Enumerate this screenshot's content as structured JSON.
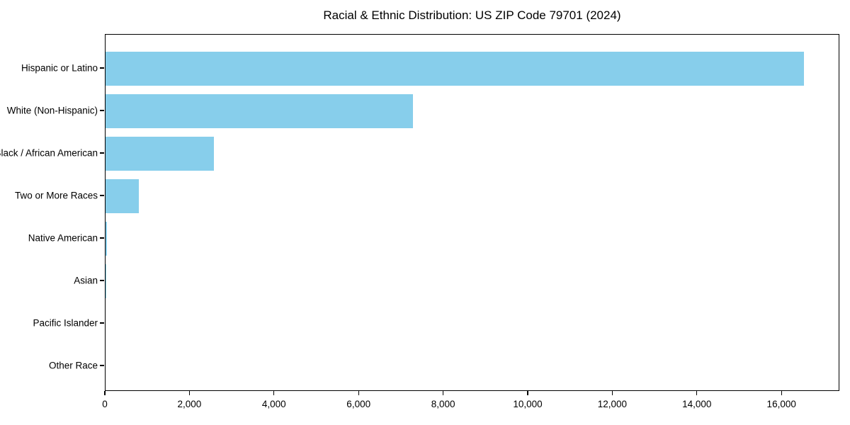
{
  "chart_data": {
    "type": "bar",
    "orientation": "horizontal",
    "title": "Racial & Ethnic Distribution: US ZIP Code 79701 (2024)",
    "categories": [
      "Hispanic or Latino",
      "White (Non-Hispanic)",
      "Black / African American",
      "Two or More Races",
      "Native American",
      "Asian",
      "Pacific Islander",
      "Other Race"
    ],
    "values": [
      16550,
      7280,
      2560,
      790,
      30,
      10,
      0,
      0
    ],
    "xlabel": "",
    "ylabel": "",
    "xlim": [
      0,
      17370
    ],
    "xticks": [
      0,
      2000,
      4000,
      6000,
      8000,
      10000,
      12000,
      14000,
      16000
    ],
    "xtick_labels": [
      "0",
      "2,000",
      "4,000",
      "6,000",
      "8,000",
      "10,000",
      "12,000",
      "14,000",
      "16,000"
    ],
    "bar_color": "#87CEEB",
    "axis_color": "#000000",
    "background_color": "#ffffff",
    "grid": false,
    "legend": null
  }
}
